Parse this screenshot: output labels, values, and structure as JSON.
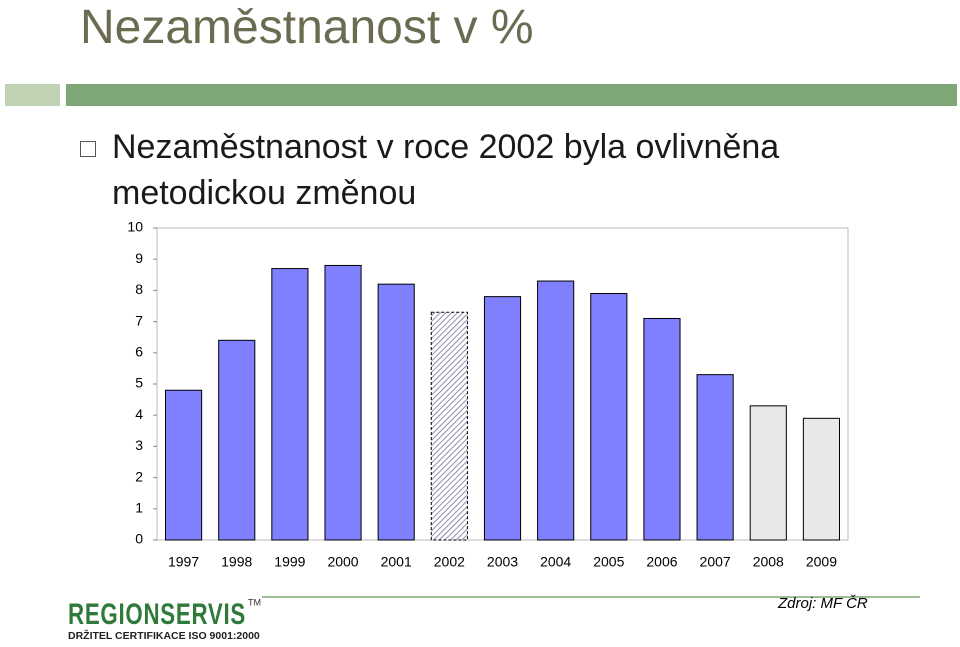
{
  "header": {
    "title": "Nezaměstnanost v %"
  },
  "bullet": "Nezaměstnanost v roce 2002 byla ovlivněna metodickou změnou",
  "chart_data": {
    "type": "bar",
    "categories": [
      "1997",
      "1998",
      "1999",
      "2000",
      "2001",
      "2002",
      "2003",
      "2004",
      "2005",
      "2006",
      "2007",
      "2008",
      "2009"
    ],
    "values": [
      4.8,
      6.4,
      8.7,
      8.8,
      8.2,
      7.3,
      7.8,
      8.3,
      7.9,
      7.1,
      5.3,
      4.3,
      3.9
    ],
    "colors": [
      "#8080ff",
      "#8080ff",
      "#8080ff",
      "#8080ff",
      "#8080ff",
      "#ffffff",
      "#8080ff",
      "#8080ff",
      "#8080ff",
      "#8080ff",
      "#8080ff",
      "#e8e8e8",
      "#e8e8e8"
    ],
    "bar_styles": [
      "solid",
      "solid",
      "solid",
      "solid",
      "solid",
      "hatched",
      "solid",
      "solid",
      "solid",
      "solid",
      "solid",
      "solid",
      "solid"
    ],
    "ylim": [
      0,
      10
    ],
    "yticks": [
      0,
      1,
      2,
      3,
      4,
      5,
      6,
      7,
      8,
      9,
      10
    ],
    "grid": false
  },
  "footer": {
    "logo": "REGIONSERVIS",
    "trademark": "TM",
    "certificate": "DRŽITEL CERTIFIKACE ISO 9001:2000",
    "source": "Zdroj: MF ČR"
  }
}
